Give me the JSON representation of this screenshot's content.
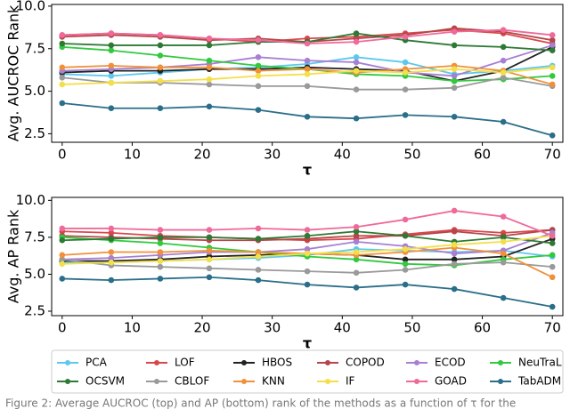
{
  "chart_data": [
    {
      "type": "line",
      "ylabel": "Avg. AUCROC Rank",
      "xlabel": "τ",
      "x": [
        0,
        7,
        14,
        21,
        28,
        35,
        42,
        49,
        56,
        63,
        70
      ],
      "xlim": [
        -1.5,
        71.5
      ],
      "ylim": [
        2.0,
        10.1
      ],
      "xticks": [
        0,
        10,
        20,
        30,
        40,
        50,
        60,
        70
      ],
      "yticks": [
        {
          "value": 2.5,
          "label": "2.5"
        },
        {
          "value": 5,
          "label": "5.0"
        },
        {
          "value": 7.5,
          "label": "7.5"
        },
        {
          "value": 10,
          "label": "10.0"
        }
      ],
      "series": [
        {
          "name": "PCA",
          "color": "#5cc8ef",
          "values": [
            6.0,
            5.9,
            6.1,
            6.3,
            6.4,
            6.6,
            7.0,
            6.7,
            6.0,
            6.2,
            6.5
          ]
        },
        {
          "name": "LOF",
          "color": "#d9474b",
          "values": [
            8.3,
            8.4,
            8.3,
            8.1,
            7.9,
            8.1,
            8.2,
            8.4,
            8.6,
            8.4,
            7.8
          ]
        },
        {
          "name": "HBOS",
          "color": "#222222",
          "values": [
            6.1,
            6.2,
            6.2,
            6.3,
            6.3,
            6.4,
            6.3,
            6.2,
            5.6,
            6.2,
            7.6
          ]
        },
        {
          "name": "COPOD",
          "color": "#b5474a",
          "values": [
            8.2,
            8.3,
            8.2,
            8.0,
            8.1,
            7.9,
            8.1,
            8.3,
            8.7,
            8.5,
            8.0
          ]
        },
        {
          "name": "ECOD",
          "color": "#a77fd3",
          "values": [
            6.2,
            6.3,
            6.4,
            6.6,
            7.0,
            6.8,
            6.7,
            6.1,
            5.9,
            6.8,
            7.7
          ]
        },
        {
          "name": "NeuTraL",
          "color": "#31c93e",
          "values": [
            7.6,
            7.4,
            7.1,
            6.8,
            6.5,
            6.3,
            6.0,
            5.9,
            5.6,
            5.7,
            5.9
          ]
        },
        {
          "name": "OCSVM",
          "color": "#2d7a34",
          "values": [
            7.8,
            7.7,
            7.7,
            7.7,
            7.9,
            7.9,
            8.4,
            8.0,
            7.7,
            7.6,
            7.4
          ]
        },
        {
          "name": "CBLOF",
          "color": "#9a9a9a",
          "values": [
            5.8,
            5.5,
            5.5,
            5.4,
            5.3,
            5.3,
            5.1,
            5.1,
            5.2,
            5.8,
            5.3
          ]
        },
        {
          "name": "KNN",
          "color": "#f0913a",
          "values": [
            6.4,
            6.5,
            6.4,
            6.4,
            6.2,
            6.3,
            6.1,
            6.3,
            6.5,
            6.2,
            5.4
          ]
        },
        {
          "name": "IF",
          "color": "#f3df4a",
          "values": [
            5.4,
            5.5,
            5.6,
            5.7,
            5.9,
            6.0,
            6.2,
            6.1,
            6.3,
            6.1,
            6.4
          ]
        },
        {
          "name": "GOAD",
          "color": "#ef6a9a",
          "values": [
            8.3,
            8.4,
            8.3,
            8.1,
            8.0,
            7.8,
            7.9,
            8.2,
            8.5,
            8.6,
            8.3
          ]
        },
        {
          "name": "TabADM",
          "color": "#2a6e89",
          "values": [
            4.3,
            4.0,
            4.0,
            4.1,
            3.9,
            3.5,
            3.4,
            3.6,
            3.5,
            3.2,
            2.4
          ]
        }
      ]
    },
    {
      "type": "line",
      "ylabel": "Avg. AP Rank",
      "xlabel": "τ",
      "x": [
        0,
        7,
        14,
        21,
        28,
        35,
        42,
        49,
        56,
        63,
        70
      ],
      "xlim": [
        -1.5,
        71.5
      ],
      "ylim": [
        2.2,
        10.2
      ],
      "xticks": [
        0,
        10,
        20,
        30,
        40,
        50,
        60,
        70
      ],
      "yticks": [
        {
          "value": 2.5,
          "label": "2.5"
        },
        {
          "value": 5,
          "label": "5.0"
        },
        {
          "value": 7.5,
          "label": "7.5"
        },
        {
          "value": 10,
          "label": "10.0"
        }
      ],
      "series": [
        {
          "color": "#5cc8ef",
          "values": [
            5.8,
            5.8,
            5.9,
            6.0,
            6.1,
            6.3,
            6.7,
            6.6,
            6.5,
            6.6,
            6.2
          ]
        },
        {
          "color": "#d9474b",
          "values": [
            7.9,
            7.8,
            7.6,
            7.5,
            7.4,
            7.3,
            7.4,
            7.7,
            8.0,
            7.8,
            8.0
          ]
        },
        {
          "color": "#222222",
          "values": [
            5.9,
            5.9,
            6.0,
            6.2,
            6.3,
            6.4,
            6.3,
            6.0,
            6.0,
            6.2,
            7.4
          ]
        },
        {
          "color": "#b5474a",
          "values": [
            7.6,
            7.5,
            7.4,
            7.3,
            7.3,
            7.4,
            7.6,
            7.6,
            7.9,
            7.6,
            8.0
          ]
        },
        {
          "color": "#a77fd3",
          "values": [
            6.0,
            6.1,
            6.3,
            6.5,
            6.5,
            6.7,
            7.2,
            6.9,
            6.4,
            6.6,
            7.8
          ]
        },
        {
          "color": "#31c93e",
          "values": [
            7.5,
            7.3,
            7.1,
            6.8,
            6.5,
            6.2,
            6.0,
            5.7,
            5.6,
            6.0,
            6.3
          ]
        },
        {
          "color": "#2d7a34",
          "values": [
            7.3,
            7.4,
            7.5,
            7.5,
            7.4,
            7.6,
            7.9,
            7.6,
            7.2,
            7.5,
            7.1
          ]
        },
        {
          "color": "#9a9a9a",
          "values": [
            6.0,
            5.6,
            5.5,
            5.4,
            5.3,
            5.2,
            5.1,
            5.3,
            5.7,
            5.8,
            5.5
          ]
        },
        {
          "color": "#f0913a",
          "values": [
            6.3,
            6.5,
            6.5,
            6.6,
            6.5,
            6.4,
            6.3,
            6.5,
            6.8,
            6.4,
            4.8
          ]
        },
        {
          "color": "#f3df4a",
          "values": [
            5.7,
            5.8,
            5.9,
            6.0,
            6.2,
            6.4,
            6.5,
            6.7,
            7.0,
            7.2,
            7.6
          ]
        },
        {
          "color": "#ef6a9a",
          "values": [
            8.1,
            8.1,
            8.0,
            8.0,
            8.1,
            8.0,
            8.2,
            8.7,
            9.3,
            8.9,
            7.6
          ]
        },
        {
          "color": "#2a6e89",
          "values": [
            4.7,
            4.6,
            4.7,
            4.8,
            4.6,
            4.3,
            4.1,
            4.3,
            4.0,
            3.4,
            2.8
          ]
        }
      ]
    }
  ],
  "caption": "Figure 2: Average AUCROC (top) and AP (bottom) rank of the methods as a function of τ for the"
}
